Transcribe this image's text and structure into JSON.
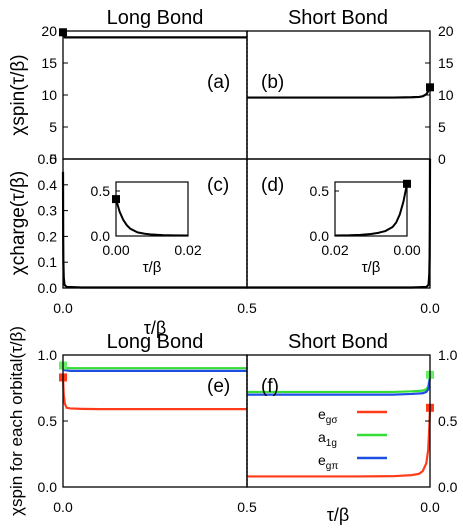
{
  "chart_data": [
    {
      "id": "a",
      "type": "line",
      "panel_label": "(a)",
      "header": "Long Bond",
      "ylabel": "χspin(τ/β)",
      "ylim": [
        0,
        20
      ],
      "yticks": [
        "0",
        "5",
        "10",
        "15",
        "20"
      ],
      "xlim": [
        0.0,
        0.5
      ],
      "series": [
        {
          "color": "#000000",
          "x": [
            0.0,
            0.002,
            0.005,
            0.01,
            0.02,
            0.05,
            0.1,
            0.2,
            0.3,
            0.4,
            0.5
          ],
          "values": [
            19.8,
            19.3,
            19.0,
            19.0,
            19.0,
            19.0,
            19.0,
            19.0,
            19.0,
            19.0,
            19.0
          ]
        }
      ],
      "markers": [
        {
          "x": 0.0,
          "y": 19.8,
          "color": "#000000"
        }
      ]
    },
    {
      "id": "b",
      "type": "line",
      "panel_label": "(b)",
      "header": "Short Bond",
      "ylim": [
        0,
        20
      ],
      "yticks_right": [
        "0",
        "5",
        "10",
        "15",
        "20"
      ],
      "xlim": [
        0.5,
        0.0
      ],
      "series": [
        {
          "color": "#000000",
          "x": [
            0.5,
            0.4,
            0.3,
            0.2,
            0.1,
            0.05,
            0.03,
            0.02,
            0.01,
            0.005,
            0.0
          ],
          "values": [
            9.6,
            9.6,
            9.6,
            9.6,
            9.6,
            9.65,
            9.7,
            9.8,
            10.1,
            10.6,
            11.2
          ]
        }
      ],
      "markers": [
        {
          "x": 0.0,
          "y": 11.2,
          "color": "#000000"
        }
      ]
    },
    {
      "id": "c",
      "type": "line",
      "panel_label": "(c)",
      "ylabel": "χcharge(τ/β)",
      "ylim": [
        0,
        0.5
      ],
      "yticks": [
        "0.0",
        "0.1",
        "0.2",
        "0.3",
        "0.4",
        "0.5"
      ],
      "xlim": [
        0.0,
        0.5
      ],
      "xticks": [
        "0.0",
        "0.5"
      ],
      "xlabel": "τ/β",
      "series": [
        {
          "color": "#000000",
          "x": [
            0.0,
            0.0005,
            0.001,
            0.002,
            0.004,
            0.01,
            0.05,
            0.2,
            0.5
          ],
          "values": [
            0.45,
            0.2,
            0.1,
            0.04,
            0.012,
            0.004,
            0.002,
            0.002,
            0.002
          ]
        }
      ],
      "inset": {
        "xlim": [
          0.0,
          0.02
        ],
        "ylim": [
          0.0,
          0.6
        ],
        "xticks": [
          "0.00",
          "0.02"
        ],
        "yticks": [
          "0.0",
          "0.5"
        ],
        "xlabel": "τ/β",
        "x": [
          0.0,
          0.001,
          0.002,
          0.003,
          0.004,
          0.006,
          0.008,
          0.01,
          0.013,
          0.016,
          0.02
        ],
        "values": [
          0.41,
          0.27,
          0.18,
          0.12,
          0.08,
          0.04,
          0.025,
          0.016,
          0.01,
          0.007,
          0.005
        ],
        "marker": {
          "x": 0.0,
          "y": 0.41
        }
      }
    },
    {
      "id": "d",
      "type": "line",
      "panel_label": "(d)",
      "ylim": [
        0,
        0.5
      ],
      "xlim": [
        0.5,
        0.0
      ],
      "xticks": [
        "0.0"
      ],
      "series": [
        {
          "color": "#000000",
          "x": [
            0.5,
            0.2,
            0.05,
            0.01,
            0.004,
            0.002,
            0.001,
            0.0005,
            0.0
          ],
          "values": [
            0.002,
            0.002,
            0.002,
            0.004,
            0.012,
            0.05,
            0.12,
            0.25,
            0.5
          ]
        }
      ],
      "inset": {
        "xlim": [
          0.02,
          0.0
        ],
        "ylim": [
          0.0,
          0.6
        ],
        "xticks": [
          "0.02",
          "0.00"
        ],
        "yticks": [
          "0.0",
          "0.5"
        ],
        "xlabel": "τ/β",
        "x": [
          0.02,
          0.016,
          0.013,
          0.01,
          0.008,
          0.006,
          0.004,
          0.003,
          0.002,
          0.001,
          0.0
        ],
        "values": [
          0.005,
          0.008,
          0.013,
          0.022,
          0.035,
          0.055,
          0.1,
          0.15,
          0.24,
          0.38,
          0.58
        ],
        "marker": {
          "x": 0.0,
          "y": 0.58
        }
      }
    },
    {
      "id": "e",
      "type": "line",
      "panel_label": "(e)",
      "header": "Long Bond",
      "ylabel": "χspin for each orbital(τ/β)",
      "ylim": [
        0,
        1.0
      ],
      "yticks": [
        "0.0",
        "0.5",
        "1.0"
      ],
      "xlim": [
        0.0,
        0.5
      ],
      "xticks": [
        "0.0",
        "0.5"
      ],
      "xlabel": "τ/β",
      "series": [
        {
          "name": "egσ",
          "color": "#ff3b1a",
          "x": [
            0.0,
            0.002,
            0.005,
            0.01,
            0.02,
            0.05,
            0.1,
            0.2,
            0.3,
            0.4,
            0.5
          ],
          "values": [
            0.83,
            0.7,
            0.63,
            0.6,
            0.595,
            0.592,
            0.59,
            0.59,
            0.59,
            0.59,
            0.59
          ]
        },
        {
          "name": "a1g",
          "color": "#33dd33",
          "x": [
            0.0,
            0.005,
            0.02,
            0.05,
            0.1,
            0.2,
            0.3,
            0.4,
            0.5
          ],
          "values": [
            0.92,
            0.905,
            0.9,
            0.9,
            0.9,
            0.9,
            0.9,
            0.9,
            0.9
          ]
        },
        {
          "name": "egπ",
          "color": "#1f4fe0",
          "x": [
            0.0,
            0.005,
            0.02,
            0.05,
            0.1,
            0.2,
            0.3,
            0.4,
            0.5
          ],
          "values": [
            0.9,
            0.885,
            0.88,
            0.88,
            0.88,
            0.88,
            0.88,
            0.88,
            0.88
          ]
        }
      ],
      "markers": [
        {
          "x": 0.0,
          "y": 0.92,
          "color": "#66ee66"
        },
        {
          "x": 0.0,
          "y": 0.83,
          "color": "#ff3b1a"
        }
      ]
    },
    {
      "id": "f",
      "type": "line",
      "panel_label": "(f)",
      "header": "Short Bond",
      "ylim": [
        0,
        1.0
      ],
      "yticks_right": [
        "0.0",
        "0.5",
        "1.0"
      ],
      "xlim": [
        0.5,
        0.0
      ],
      "xticks": [
        "0.0"
      ],
      "series": [
        {
          "name": "egσ",
          "color": "#ff3b1a",
          "x": [
            0.5,
            0.4,
            0.3,
            0.2,
            0.1,
            0.05,
            0.03,
            0.02,
            0.01,
            0.005,
            0.002,
            0.0
          ],
          "values": [
            0.08,
            0.08,
            0.08,
            0.08,
            0.082,
            0.09,
            0.1,
            0.12,
            0.18,
            0.28,
            0.45,
            0.6
          ]
        },
        {
          "name": "a1g",
          "color": "#33dd33",
          "x": [
            0.5,
            0.4,
            0.3,
            0.2,
            0.1,
            0.05,
            0.02,
            0.01,
            0.005,
            0.0
          ],
          "values": [
            0.72,
            0.72,
            0.72,
            0.72,
            0.72,
            0.725,
            0.73,
            0.74,
            0.76,
            0.84
          ]
        },
        {
          "name": "egπ",
          "color": "#1f4fe0",
          "x": [
            0.5,
            0.4,
            0.3,
            0.2,
            0.1,
            0.05,
            0.02,
            0.01,
            0.005,
            0.0
          ],
          "values": [
            0.7,
            0.7,
            0.7,
            0.7,
            0.7,
            0.705,
            0.71,
            0.72,
            0.74,
            0.83
          ]
        }
      ],
      "markers": [
        {
          "x": 0.0,
          "y": 0.85,
          "color": "#66ee66"
        },
        {
          "x": 0.0,
          "y": 0.6,
          "color": "#ff3b1a"
        }
      ],
      "legend": {
        "placement": "center-right",
        "entries": [
          {
            "label": "egσ",
            "main": "e",
            "sub": "gσ",
            "color": "#ff3b1a"
          },
          {
            "label": "a1g",
            "main": "a",
            "sub": "1g",
            "color": "#33dd33"
          },
          {
            "label": "egπ",
            "main": "e",
            "sub": "gπ",
            "color": "#1f4fe0"
          }
        ]
      }
    }
  ]
}
